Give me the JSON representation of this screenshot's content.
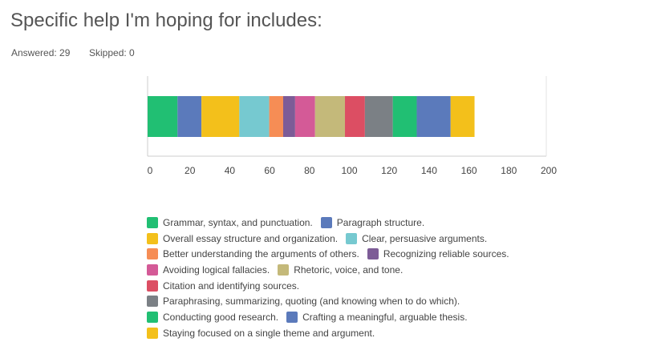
{
  "chart_data": {
    "type": "bar",
    "stacked": true,
    "orientation": "horizontal",
    "title": "Specific help I'm hoping for includes:",
    "answered": "Answered: 29",
    "skipped": "Skipped: 0",
    "categories": [
      null
    ],
    "series": [
      {
        "name": "Grammar, syntax, and punctuation.",
        "color": "#21bf73",
        "values": [
          15
        ]
      },
      {
        "name": "Paragraph structure.",
        "color": "#5b7abb",
        "values": [
          12
        ]
      },
      {
        "name": "Overall essay structure and organization.",
        "color": "#f3c01b",
        "values": [
          19
        ]
      },
      {
        "name": "Clear, persuasive arguments.",
        "color": "#76c9d0",
        "values": [
          15
        ]
      },
      {
        "name": "Better understanding the arguments of others.",
        "color": "#f68d55",
        "values": [
          7
        ]
      },
      {
        "name": "Recognizing reliable sources.",
        "color": "#7d5c97",
        "values": [
          6
        ]
      },
      {
        "name": "Avoiding logical fallacies.",
        "color": "#d45a97",
        "values": [
          10
        ]
      },
      {
        "name": "Rhetoric, voice, and tone.",
        "color": "#c4b97a",
        "values": [
          15
        ]
      },
      {
        "name": "Citation and identifying sources.",
        "color": "#dc4e63",
        "values": [
          10
        ]
      },
      {
        "name": "Paraphrasing, summarizing, quoting (and knowing when to do which).",
        "color": "#7b8085",
        "values": [
          14
        ]
      },
      {
        "name": "Conducting good research.",
        "color": "#21bf73",
        "values": [
          12
        ]
      },
      {
        "name": "Crafting a meaningful, arguable thesis.",
        "color": "#5b7abb",
        "values": [
          17
        ]
      },
      {
        "name": "Staying focused on a single theme and argument.",
        "color": "#f3c01b",
        "values": [
          12
        ]
      }
    ],
    "xlim": [
      0,
      200
    ],
    "xticks": [
      0,
      20,
      40,
      60,
      80,
      100,
      120,
      140,
      160,
      180,
      200
    ],
    "grid": false
  }
}
